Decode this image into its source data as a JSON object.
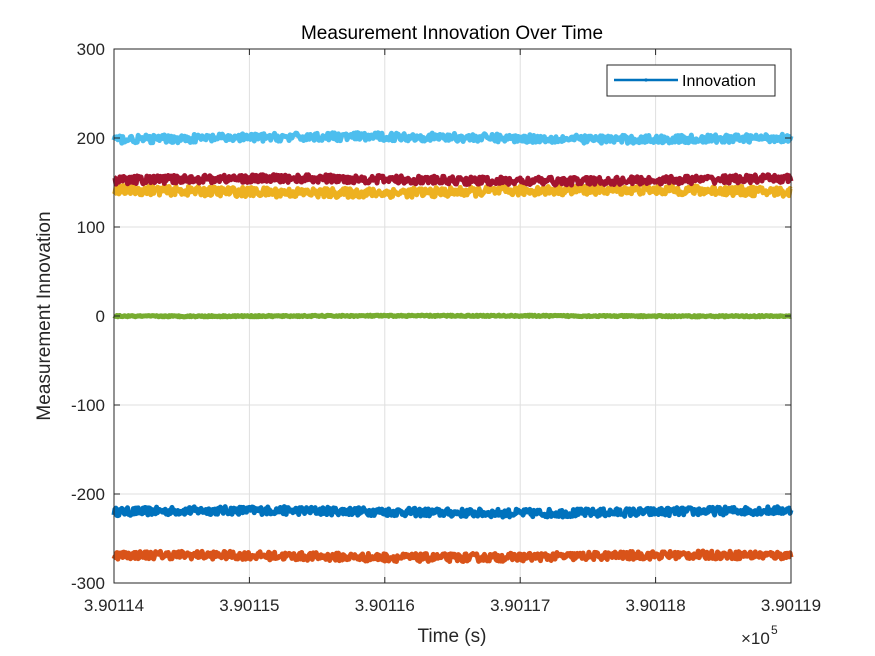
{
  "chart_data": {
    "type": "line",
    "title": "Measurement Innovation Over Time",
    "xlabel": "Time (s)",
    "ylabel": "Measurement Innovation",
    "xlim": [
      390114,
      390119
    ],
    "ylim": [
      -300,
      300
    ],
    "x_ticks": [
      390114,
      390115,
      390116,
      390117,
      390118,
      390119
    ],
    "x_tick_labels": [
      "3.90114",
      "3.90115",
      "3.90116",
      "3.90117",
      "3.90118",
      "3.90119"
    ],
    "x_exponent_label": "×10",
    "x_exponent_power": "5",
    "y_ticks": [
      -300,
      -200,
      -100,
      0,
      100,
      200,
      300
    ],
    "y_tick_labels": [
      "-300",
      "-200",
      "-100",
      "0",
      "100",
      "200",
      "300"
    ],
    "grid": true,
    "legend": {
      "position": "top-right",
      "entries": [
        "Innovation"
      ]
    },
    "series": [
      {
        "name": "Innovation",
        "color": "#0072BD",
        "level": -220,
        "band": [
          -226,
          -214
        ]
      },
      {
        "color": "#D95319",
        "level": -270,
        "band": [
          -276,
          -264
        ]
      },
      {
        "color": "#EDB120",
        "level": 140,
        "band": [
          133,
          147
        ]
      },
      {
        "color": "#7E2F8E",
        "level": 0,
        "band": [
          0,
          0
        ]
      },
      {
        "color": "#77AC30",
        "level": 0,
        "band": [
          -1,
          1
        ]
      },
      {
        "color": "#4DBEEE",
        "level": 200,
        "band": [
          194,
          206
        ]
      },
      {
        "color": "#A2142F",
        "level": 153,
        "band": [
          147,
          159
        ]
      }
    ]
  }
}
